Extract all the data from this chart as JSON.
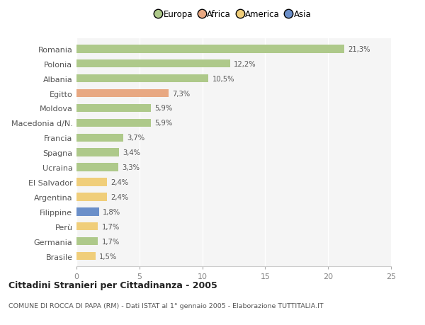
{
  "categories": [
    "Romania",
    "Polonia",
    "Albania",
    "Egitto",
    "Moldova",
    "Macedonia d/N.",
    "Francia",
    "Spagna",
    "Ucraina",
    "El Salvador",
    "Argentina",
    "Filippine",
    "Perù",
    "Germania",
    "Brasile"
  ],
  "values": [
    21.3,
    12.2,
    10.5,
    7.3,
    5.9,
    5.9,
    3.7,
    3.4,
    3.3,
    2.4,
    2.4,
    1.8,
    1.7,
    1.7,
    1.5
  ],
  "labels": [
    "21,3%",
    "12,2%",
    "10,5%",
    "7,3%",
    "5,9%",
    "5,9%",
    "3,7%",
    "3,4%",
    "3,3%",
    "2,4%",
    "2,4%",
    "1,8%",
    "1,7%",
    "1,7%",
    "1,5%"
  ],
  "bar_colors": [
    "#aec98a",
    "#aec98a",
    "#aec98a",
    "#e8a882",
    "#aec98a",
    "#aec98a",
    "#aec98a",
    "#aec98a",
    "#aec98a",
    "#f0ce7a",
    "#f0ce7a",
    "#6b8fc9",
    "#f0ce7a",
    "#aec98a",
    "#f0ce7a"
  ],
  "legend_labels": [
    "Europa",
    "Africa",
    "America",
    "Asia"
  ],
  "legend_colors": [
    "#aec98a",
    "#e8a882",
    "#f0ce7a",
    "#6b8fc9"
  ],
  "title": "Cittadini Stranieri per Cittadinanza - 2005",
  "subtitle": "COMUNE DI ROCCA DI PAPA (RM) - Dati ISTAT al 1° gennaio 2005 - Elaborazione TUTTITALIA.IT",
  "xlim": [
    0,
    25
  ],
  "xticks": [
    0,
    5,
    10,
    15,
    20,
    25
  ],
  "background_color": "#ffffff",
  "plot_bg_color": "#f5f5f5",
  "grid_color": "#ffffff",
  "bar_height": 0.55
}
